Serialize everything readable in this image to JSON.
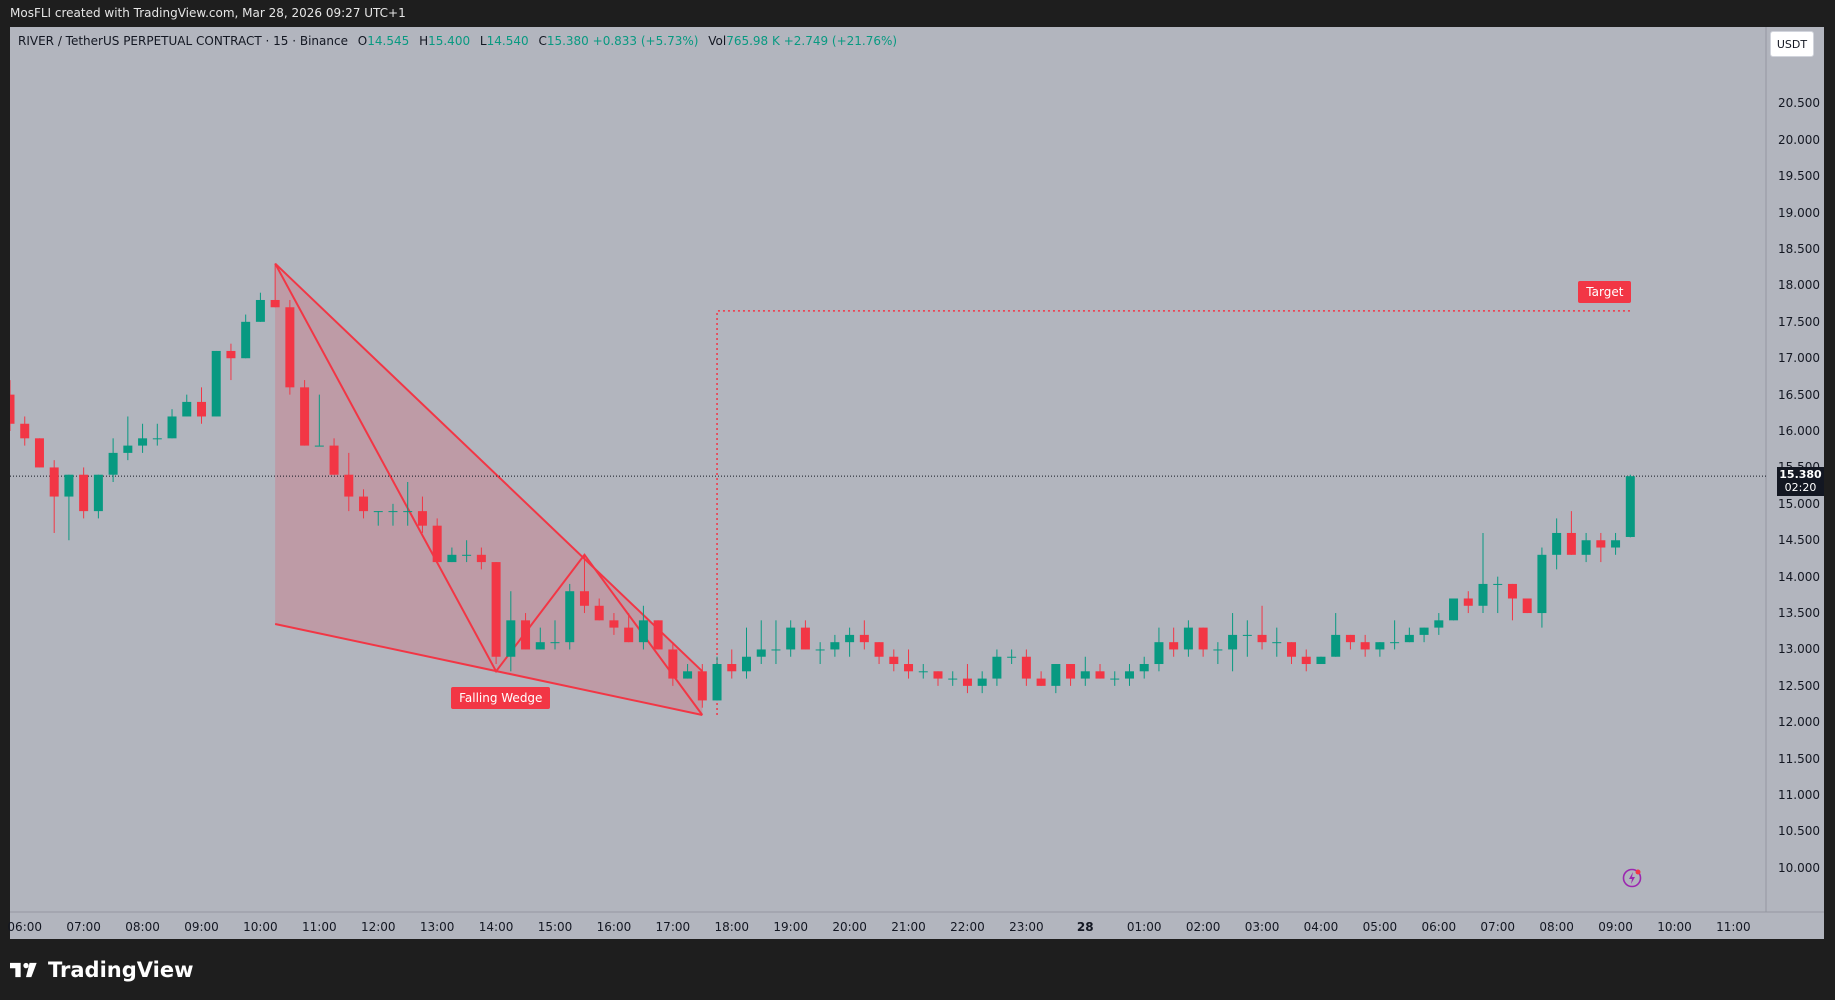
{
  "header": {
    "attribution": "MosFLI created with TradingView.com, Mar 28, 2026 09:27 UTC+1"
  },
  "legend": {
    "symbol": "RIVER / TetherUS PERPETUAL CONTRACT · 15 · Binance",
    "open_label": "O",
    "open": "14.545",
    "high_label": "H",
    "high": "15.400",
    "low_label": "L",
    "low": "14.540",
    "close_label": "C",
    "close": "15.380",
    "change": "+0.833 (+5.73%)",
    "vol_label": "Vol",
    "vol": "765.98 K",
    "vol_change": "+2.749 (+21.76%)"
  },
  "currency_button": "USDT",
  "current_price": {
    "price": "15.380",
    "countdown": "02:20"
  },
  "annotations": {
    "falling_wedge": "Falling Wedge",
    "target": "Target"
  },
  "brand": "TradingView",
  "colors": {
    "up": "#089981",
    "down": "#f23645",
    "background": "#b2b5be",
    "wedge_fill": "rgba(242,54,69,0.2)"
  },
  "chart_data": {
    "type": "candlestick",
    "symbol": "RIVER / TetherUS PERPETUAL CONTRACT",
    "interval": "15",
    "exchange": "Binance",
    "ylim": [
      9.6,
      21.0
    ],
    "y_ticks": [
      "10.000",
      "10.500",
      "11.000",
      "11.500",
      "12.000",
      "12.500",
      "13.000",
      "13.500",
      "14.000",
      "14.500",
      "15.000",
      "15.500",
      "16.000",
      "16.500",
      "17.000",
      "17.500",
      "18.000",
      "18.500",
      "19.000",
      "19.500",
      "20.000",
      "20.500"
    ],
    "x_ticks": [
      {
        "label": "06:00",
        "index": 1
      },
      {
        "label": "07:00",
        "index": 5
      },
      {
        "label": "08:00",
        "index": 9
      },
      {
        "label": "09:00",
        "index": 13
      },
      {
        "label": "10:00",
        "index": 17
      },
      {
        "label": "11:00",
        "index": 21
      },
      {
        "label": "12:00",
        "index": 25
      },
      {
        "label": "13:00",
        "index": 29
      },
      {
        "label": "14:00",
        "index": 33
      },
      {
        "label": "15:00",
        "index": 37
      },
      {
        "label": "16:00",
        "index": 41
      },
      {
        "label": "17:00",
        "index": 45
      },
      {
        "label": "18:00",
        "index": 49
      },
      {
        "label": "19:00",
        "index": 53
      },
      {
        "label": "20:00",
        "index": 57
      },
      {
        "label": "21:00",
        "index": 61
      },
      {
        "label": "22:00",
        "index": 65
      },
      {
        "label": "23:00",
        "index": 69
      },
      {
        "label": "28",
        "index": 73,
        "bold": true
      },
      {
        "label": "01:00",
        "index": 77
      },
      {
        "label": "02:00",
        "index": 81
      },
      {
        "label": "03:00",
        "index": 85
      },
      {
        "label": "04:00",
        "index": 89
      },
      {
        "label": "05:00",
        "index": 93
      },
      {
        "label": "06:00",
        "index": 97
      },
      {
        "label": "07:00",
        "index": 101
      },
      {
        "label": "08:00",
        "index": 105
      },
      {
        "label": "09:00",
        "index": 109
      },
      {
        "label": "10:00",
        "index": 113
      },
      {
        "label": "11:00",
        "index": 117
      }
    ],
    "candles": [
      [
        16.5,
        16.7,
        16.0,
        16.1
      ],
      [
        16.1,
        16.2,
        15.8,
        15.9
      ],
      [
        15.9,
        15.9,
        15.5,
        15.5
      ],
      [
        15.5,
        15.6,
        14.6,
        15.1
      ],
      [
        15.1,
        15.4,
        14.5,
        15.4
      ],
      [
        15.4,
        15.5,
        14.8,
        14.9
      ],
      [
        14.9,
        15.4,
        14.8,
        15.4
      ],
      [
        15.4,
        15.9,
        15.3,
        15.7
      ],
      [
        15.7,
        16.2,
        15.6,
        15.8
      ],
      [
        15.8,
        16.1,
        15.7,
        15.9
      ],
      [
        15.9,
        16.1,
        15.8,
        15.9
      ],
      [
        15.9,
        16.3,
        15.9,
        16.2
      ],
      [
        16.2,
        16.5,
        16.2,
        16.4
      ],
      [
        16.4,
        16.6,
        16.1,
        16.2
      ],
      [
        16.2,
        17.1,
        16.2,
        17.1
      ],
      [
        17.1,
        17.2,
        16.7,
        17.0
      ],
      [
        17.0,
        17.6,
        17.0,
        17.5
      ],
      [
        17.5,
        17.9,
        17.5,
        17.8
      ],
      [
        17.8,
        18.3,
        17.7,
        17.7
      ],
      [
        17.7,
        17.8,
        16.5,
        16.6
      ],
      [
        16.6,
        16.7,
        15.8,
        15.8
      ],
      [
        15.8,
        16.5,
        15.8,
        15.8
      ],
      [
        15.8,
        15.9,
        15.4,
        15.4
      ],
      [
        15.4,
        15.7,
        14.9,
        15.1
      ],
      [
        15.1,
        15.2,
        14.8,
        14.9
      ],
      [
        14.9,
        14.9,
        14.7,
        14.9
      ],
      [
        14.9,
        15.0,
        14.7,
        14.9
      ],
      [
        14.9,
        15.3,
        14.7,
        14.9
      ],
      [
        14.9,
        15.1,
        14.6,
        14.7
      ],
      [
        14.7,
        14.8,
        14.2,
        14.2
      ],
      [
        14.2,
        14.4,
        14.2,
        14.3
      ],
      [
        14.3,
        14.5,
        14.2,
        14.3
      ],
      [
        14.3,
        14.4,
        14.1,
        14.2
      ],
      [
        14.2,
        14.2,
        12.8,
        12.9
      ],
      [
        12.9,
        13.8,
        12.7,
        13.4
      ],
      [
        13.4,
        13.5,
        13.0,
        13.0
      ],
      [
        13.0,
        13.3,
        13.0,
        13.1
      ],
      [
        13.1,
        13.4,
        13.0,
        13.1
      ],
      [
        13.1,
        13.9,
        13.0,
        13.8
      ],
      [
        13.8,
        14.3,
        13.5,
        13.6
      ],
      [
        13.6,
        13.7,
        13.4,
        13.4
      ],
      [
        13.4,
        13.5,
        13.2,
        13.3
      ],
      [
        13.3,
        13.5,
        13.1,
        13.1
      ],
      [
        13.1,
        13.6,
        13.0,
        13.4
      ],
      [
        13.4,
        13.4,
        13.0,
        13.0
      ],
      [
        13.0,
        13.1,
        12.5,
        12.6
      ],
      [
        12.6,
        12.8,
        12.6,
        12.7
      ],
      [
        12.7,
        12.8,
        12.2,
        12.3
      ],
      [
        12.3,
        12.9,
        12.3,
        12.8
      ],
      [
        12.8,
        13.0,
        12.6,
        12.7
      ],
      [
        12.7,
        13.3,
        12.6,
        12.9
      ],
      [
        12.9,
        13.4,
        12.8,
        13.0
      ],
      [
        13.0,
        13.4,
        12.8,
        13.0
      ],
      [
        13.0,
        13.4,
        12.9,
        13.3
      ],
      [
        13.3,
        13.4,
        13.0,
        13.0
      ],
      [
        13.0,
        13.1,
        12.8,
        13.0
      ],
      [
        13.0,
        13.2,
        12.9,
        13.1
      ],
      [
        13.1,
        13.3,
        12.9,
        13.2
      ],
      [
        13.2,
        13.4,
        13.0,
        13.1
      ],
      [
        13.1,
        13.1,
        12.8,
        12.9
      ],
      [
        12.9,
        13.0,
        12.7,
        12.8
      ],
      [
        12.8,
        13.0,
        12.6,
        12.7
      ],
      [
        12.7,
        12.8,
        12.6,
        12.7
      ],
      [
        12.7,
        12.7,
        12.5,
        12.6
      ],
      [
        12.6,
        12.7,
        12.5,
        12.6
      ],
      [
        12.6,
        12.8,
        12.4,
        12.5
      ],
      [
        12.5,
        12.7,
        12.4,
        12.6
      ],
      [
        12.6,
        13.0,
        12.5,
        12.9
      ],
      [
        12.9,
        13.0,
        12.8,
        12.9
      ],
      [
        12.9,
        13.0,
        12.5,
        12.6
      ],
      [
        12.6,
        12.7,
        12.5,
        12.5
      ],
      [
        12.5,
        12.8,
        12.4,
        12.8
      ],
      [
        12.8,
        12.8,
        12.5,
        12.6
      ],
      [
        12.6,
        12.9,
        12.5,
        12.7
      ],
      [
        12.7,
        12.8,
        12.6,
        12.6
      ],
      [
        12.6,
        12.7,
        12.5,
        12.6
      ],
      [
        12.6,
        12.8,
        12.5,
        12.7
      ],
      [
        12.7,
        12.9,
        12.6,
        12.8
      ],
      [
        12.8,
        13.3,
        12.7,
        13.1
      ],
      [
        13.1,
        13.3,
        12.9,
        13.0
      ],
      [
        13.0,
        13.4,
        12.9,
        13.3
      ],
      [
        13.3,
        13.3,
        12.9,
        13.0
      ],
      [
        13.0,
        13.1,
        12.8,
        13.0
      ],
      [
        13.0,
        13.5,
        12.7,
        13.2
      ],
      [
        13.2,
        13.4,
        12.9,
        13.2
      ],
      [
        13.2,
        13.6,
        13.0,
        13.1
      ],
      [
        13.1,
        13.3,
        12.9,
        13.1
      ],
      [
        13.1,
        13.1,
        12.8,
        12.9
      ],
      [
        12.9,
        13.0,
        12.7,
        12.8
      ],
      [
        12.8,
        12.9,
        12.8,
        12.9
      ],
      [
        12.9,
        13.5,
        12.9,
        13.2
      ],
      [
        13.2,
        13.2,
        13.0,
        13.1
      ],
      [
        13.1,
        13.2,
        12.9,
        13.0
      ],
      [
        13.0,
        13.1,
        12.9,
        13.1
      ],
      [
        13.1,
        13.4,
        13.0,
        13.1
      ],
      [
        13.1,
        13.3,
        13.1,
        13.2
      ],
      [
        13.2,
        13.3,
        13.1,
        13.3
      ],
      [
        13.3,
        13.5,
        13.2,
        13.4
      ],
      [
        13.4,
        13.7,
        13.4,
        13.7
      ],
      [
        13.7,
        13.8,
        13.5,
        13.6
      ],
      [
        13.6,
        14.6,
        13.5,
        13.9
      ],
      [
        13.9,
        14.0,
        13.5,
        13.9
      ],
      [
        13.9,
        13.9,
        13.4,
        13.7
      ],
      [
        13.7,
        13.7,
        13.5,
        13.5
      ],
      [
        13.5,
        14.4,
        13.3,
        14.3
      ],
      [
        14.3,
        14.8,
        14.1,
        14.6
      ],
      [
        14.6,
        14.9,
        14.3,
        14.3
      ],
      [
        14.3,
        14.6,
        14.2,
        14.5
      ],
      [
        14.5,
        14.6,
        14.2,
        14.4
      ],
      [
        14.4,
        14.6,
        14.3,
        14.5
      ],
      [
        14.545,
        15.4,
        14.54,
        15.38
      ]
    ],
    "drawings": {
      "falling_wedge": {
        "upper_line": [
          [
            18,
            18.3
          ],
          [
            47,
            12.7
          ]
        ],
        "lower_line": [
          [
            18,
            13.35
          ],
          [
            47,
            12.1
          ]
        ],
        "zigzag": [
          [
            18,
            18.3
          ],
          [
            33,
            12.7
          ],
          [
            39,
            14.3
          ],
          [
            47,
            12.1
          ]
        ],
        "label": "Falling Wedge"
      },
      "target": {
        "price": 17.65,
        "from_index": 48,
        "to_index": 110,
        "breakout_low": 12.1,
        "label": "Target"
      }
    }
  }
}
